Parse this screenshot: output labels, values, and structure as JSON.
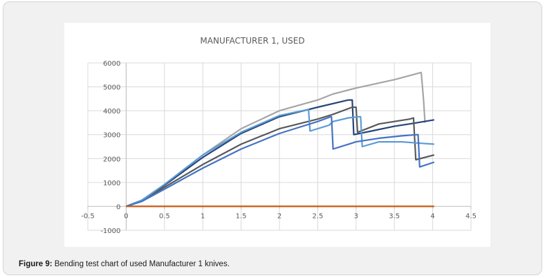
{
  "figure": {
    "caption_label": "Figure 9:",
    "caption_text": " Bending test chart of used Manufacturer 1 knives."
  },
  "chart_data": {
    "type": "line",
    "title": "MANUFACTURER 1, USED",
    "xlabel": "",
    "ylabel": "",
    "xlim": [
      -0.5,
      4.5
    ],
    "ylim": [
      -1000,
      6000
    ],
    "x_ticks": [
      -0.5,
      0,
      0.5,
      1,
      1.5,
      2,
      2.5,
      3,
      3.5,
      4,
      4.5
    ],
    "x_tick_labels": [
      "-0.5",
      "0",
      "0.5",
      "1",
      "1.5",
      "2",
      "2.5",
      "3",
      "3.5",
      "4",
      "4.5"
    ],
    "y_ticks": [
      -1000,
      0,
      1000,
      2000,
      3000,
      4000,
      5000,
      6000
    ],
    "y_tick_labels": [
      "-1000",
      "0",
      "1000",
      "2000",
      "3000",
      "4000",
      "5000",
      "6000"
    ],
    "grid": true,
    "legend": "none",
    "series": [
      {
        "color": "#a5a5a5",
        "x": [
          0,
          0.2,
          0.5,
          1,
          1.5,
          2,
          2.5,
          2.7,
          3,
          3.5,
          3.85,
          3.88,
          3.9
        ],
        "y": [
          0,
          250,
          900,
          2150,
          3250,
          4000,
          4450,
          4700,
          4950,
          5300,
          5600,
          4500,
          3500
        ]
      },
      {
        "color": "#264478",
        "x": [
          0,
          0.2,
          0.5,
          1,
          1.5,
          2,
          2.5,
          2.9,
          2.95,
          2.97,
          3.2,
          3.5,
          3.7,
          4.02
        ],
        "y": [
          0,
          250,
          880,
          2050,
          3050,
          3750,
          4150,
          4450,
          4450,
          3000,
          3150,
          3350,
          3450,
          3620
        ]
      },
      {
        "color": "#595959",
        "x": [
          0,
          0.2,
          0.5,
          1,
          1.5,
          2,
          2.5,
          2.7,
          2.95,
          3.0,
          3.02,
          3.3,
          3.7,
          3.75,
          3.78,
          4.02
        ],
        "y": [
          0,
          230,
          800,
          1750,
          2600,
          3250,
          3650,
          3850,
          4150,
          4150,
          3100,
          3450,
          3650,
          3700,
          1950,
          2150
        ]
      },
      {
        "color": "#5b9bd5",
        "x": [
          0,
          0.2,
          0.5,
          1,
          1.5,
          2,
          2.37,
          2.38,
          2.4,
          2.65,
          2.7,
          2.9,
          3.03,
          3.06,
          3.08,
          3.3,
          3.6,
          3.8,
          4.02
        ],
        "y": [
          0,
          250,
          920,
          2150,
          3100,
          3800,
          4050,
          4050,
          3150,
          3400,
          3550,
          3700,
          3750,
          3750,
          2500,
          2700,
          2700,
          2650,
          2600
        ]
      },
      {
        "color": "#4472c4",
        "x": [
          0,
          0.2,
          0.5,
          1,
          1.5,
          2,
          2.5,
          2.67,
          2.68,
          2.7,
          3.0,
          3.3,
          3.6,
          3.8,
          3.81,
          3.83,
          4.02
        ],
        "y": [
          0,
          200,
          720,
          1600,
          2400,
          3050,
          3550,
          3750,
          3750,
          2400,
          2700,
          2850,
          2950,
          3000,
          3000,
          1650,
          1850
        ]
      },
      {
        "color": "#c55a11",
        "x": [
          0,
          4.02
        ],
        "y": [
          0,
          0
        ]
      }
    ]
  }
}
